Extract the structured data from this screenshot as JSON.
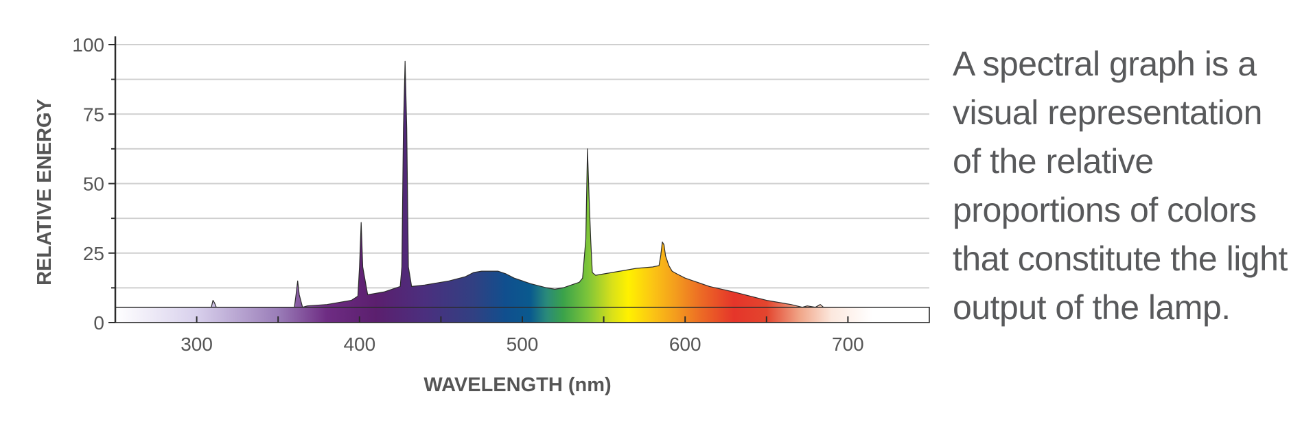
{
  "description_lines": [
    "A spectral graph is a",
    "visual representation",
    "of the relative",
    "proportions of colors",
    "that constitute the light",
    "output of the lamp."
  ],
  "chart_data": {
    "type": "area",
    "title": "",
    "xlabel": "WAVELENGTH (nm)",
    "ylabel": "RELATIVE ENERGY",
    "xlim": [
      250,
      750
    ],
    "ylim": [
      0,
      100
    ],
    "xticks": [
      300,
      400,
      500,
      600,
      700
    ],
    "yticks": [
      0,
      25,
      50,
      75,
      100
    ],
    "grid": true,
    "gradient_fill": "visible spectrum colors by wavelength",
    "series": [
      {
        "x": [
          250,
          309,
          310,
          311,
          312,
          360,
          361,
          362,
          363,
          365,
          368,
          380,
          395,
          399,
          400,
          401,
          402,
          405,
          415,
          425,
          426,
          427,
          428,
          429,
          430,
          432,
          440,
          455,
          465,
          470,
          475,
          480,
          485,
          490,
          495,
          505,
          515,
          520,
          525,
          530,
          535,
          537,
          539,
          540,
          541,
          542,
          543,
          545,
          550,
          560,
          570,
          580,
          584,
          585,
          586,
          587,
          588,
          590,
          592,
          595,
          600,
          605,
          615,
          630,
          650,
          665,
          672,
          675,
          680,
          683,
          685,
          690,
          700,
          750
        ],
        "y": [
          5.5,
          5.5,
          8,
          7,
          5.5,
          5.5,
          10,
          15,
          10,
          5.5,
          6,
          6.5,
          8,
          9.5,
          20,
          36,
          20,
          10,
          11,
          13,
          20,
          70,
          94,
          70,
          20,
          13,
          13.5,
          15,
          16.5,
          18,
          18.5,
          18.5,
          18.5,
          17.5,
          16,
          14,
          12.5,
          12,
          12.5,
          13.5,
          14.5,
          16,
          30,
          62.5,
          45,
          30,
          18,
          17,
          17.5,
          18.5,
          19.5,
          20,
          20.5,
          24,
          29,
          28,
          24,
          20.5,
          18.5,
          17.5,
          16,
          15,
          13,
          11,
          8,
          6.5,
          5.5,
          6,
          5.5,
          6.5,
          5.5,
          5.5,
          5.5,
          5.5
        ]
      }
    ]
  }
}
